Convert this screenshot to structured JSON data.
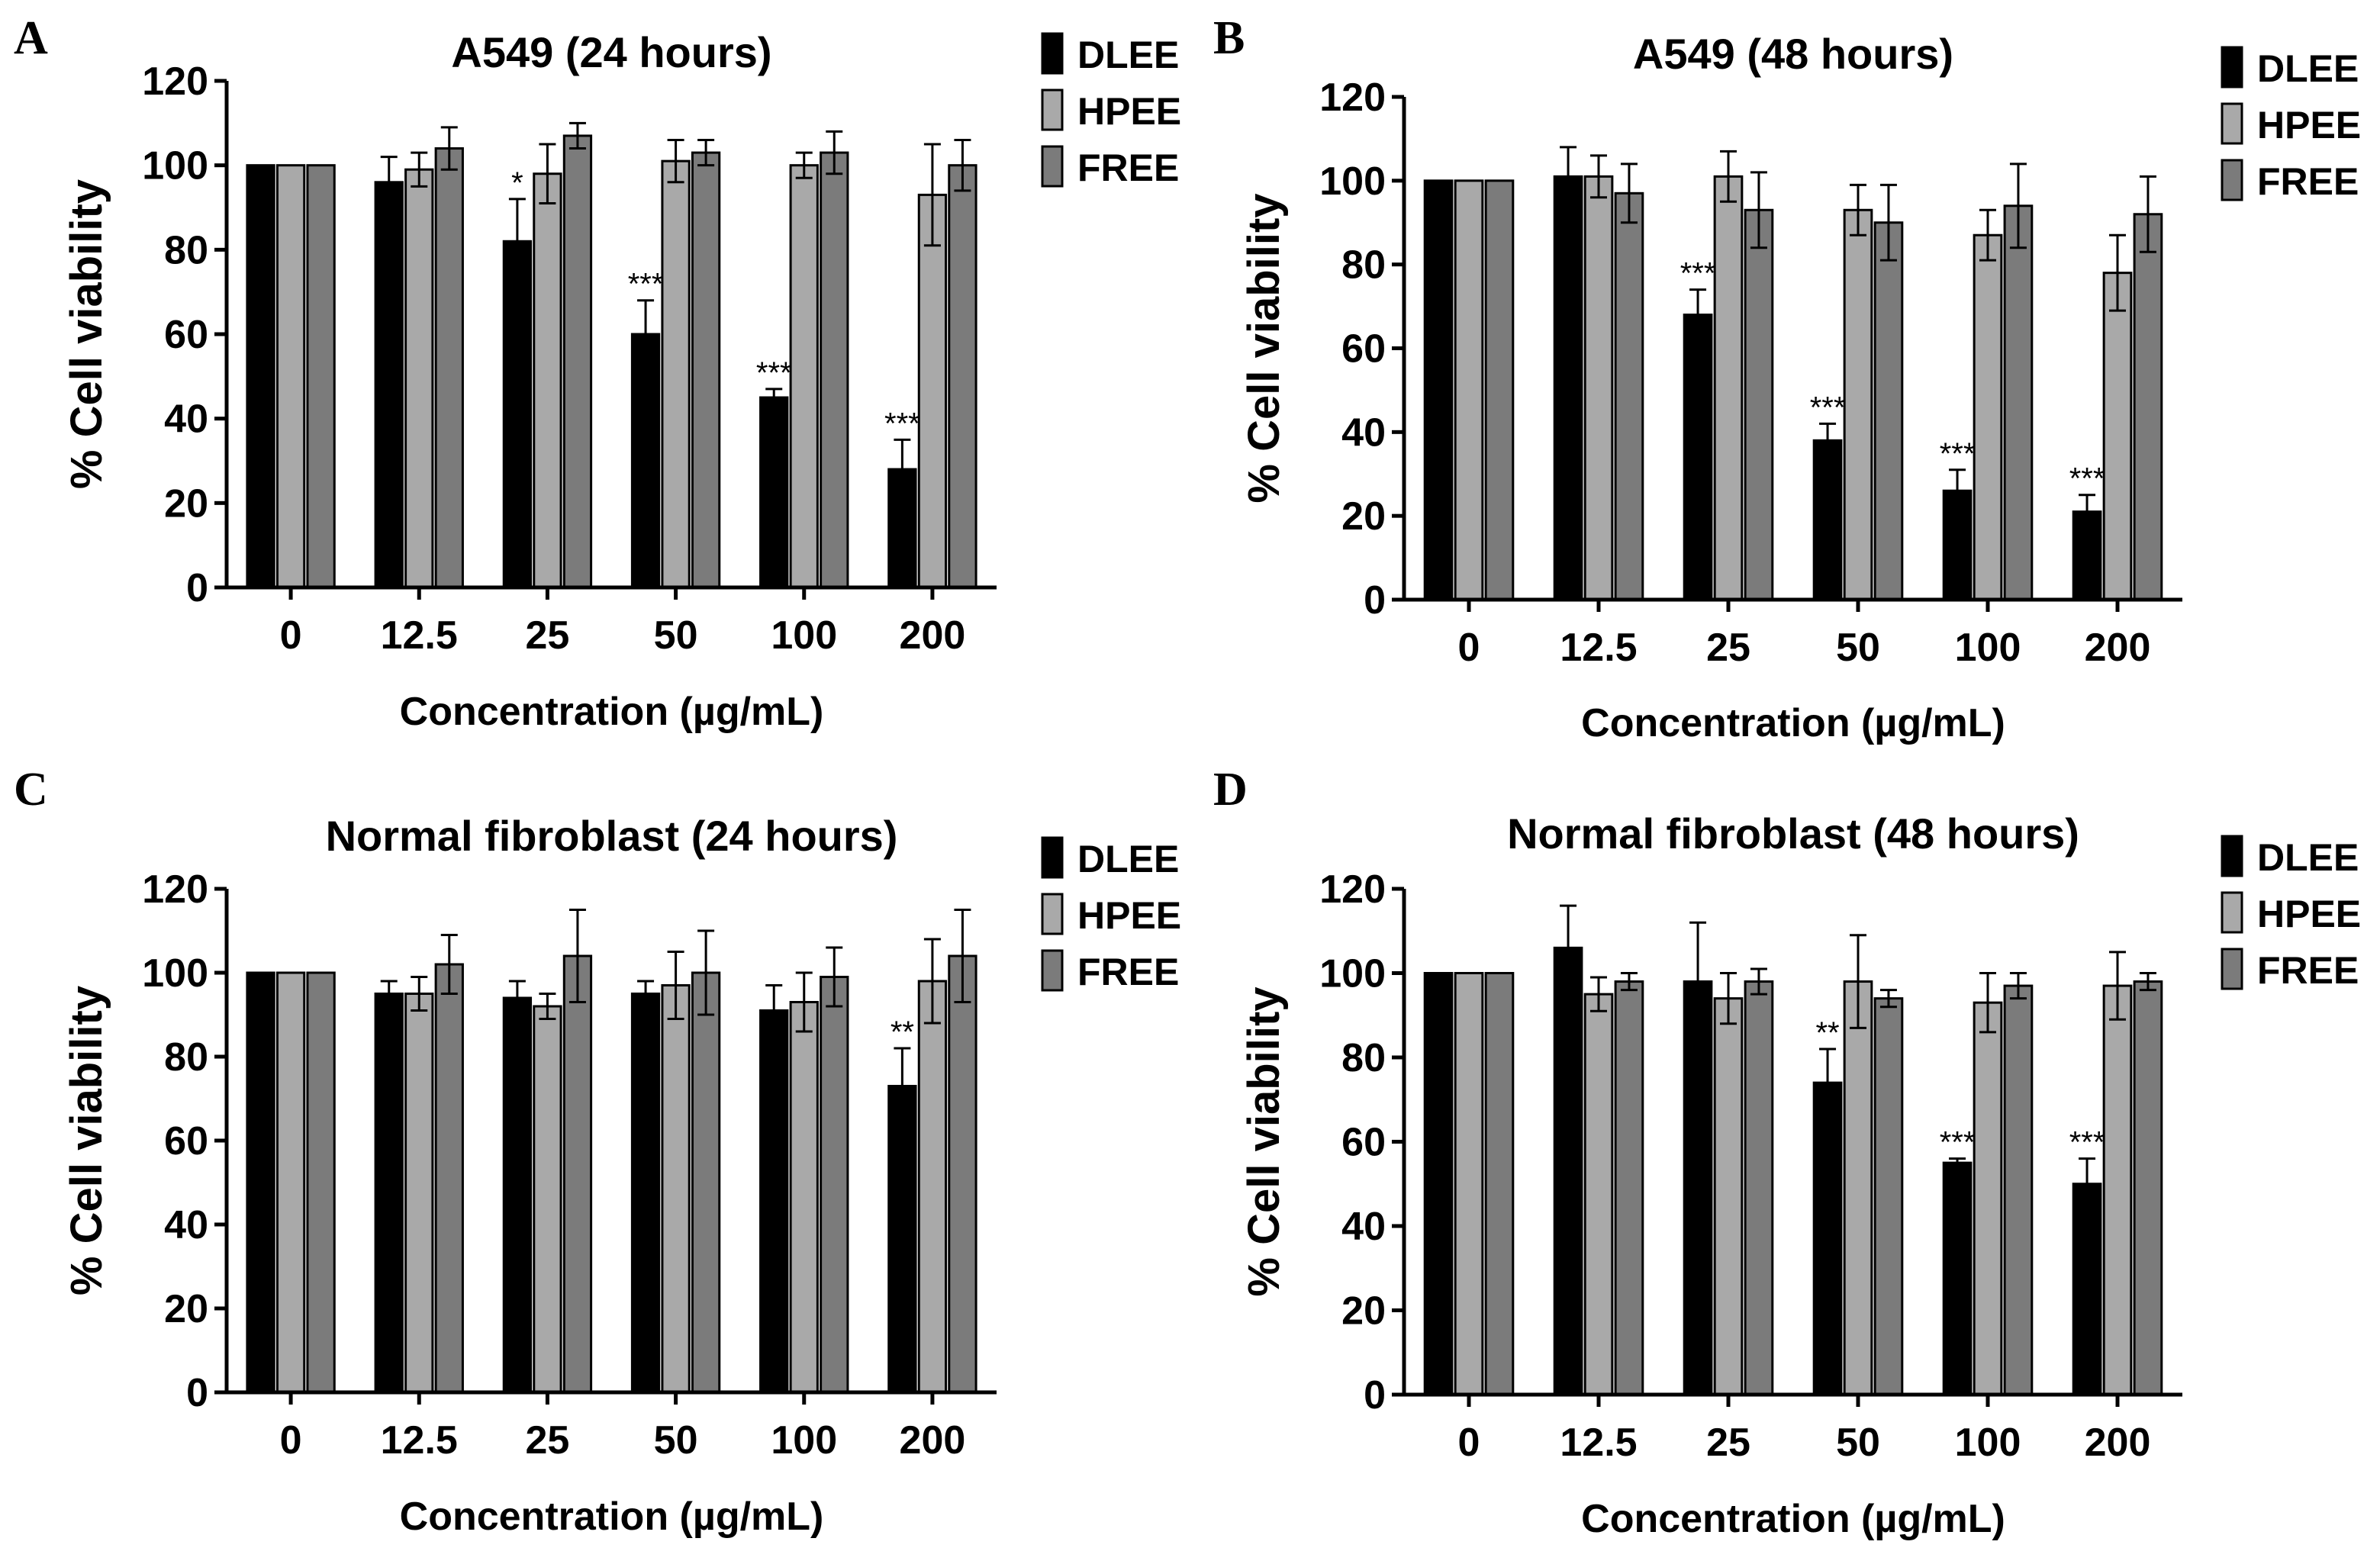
{
  "figure": {
    "panels": [
      "A",
      "B",
      "C",
      "D"
    ]
  },
  "colors": {
    "DLEE": "#000000",
    "HPEE": "#a9a9a9",
    "FREE": "#7b7b7b",
    "outline": "#000000"
  },
  "chart_data": [
    {
      "panel": "A",
      "type": "bar",
      "title": "A549 (24 hours)",
      "xlabel": "Concentration (µg/mL)",
      "ylabel": "% Cell viability",
      "ylim": [
        0,
        120
      ],
      "yticks": [
        "0",
        "20",
        "40",
        "60",
        "80",
        "100",
        "120"
      ],
      "categories": [
        "0",
        "12.5",
        "25",
        "50",
        "100",
        "200"
      ],
      "legend": [
        "DLEE",
        "HPEE",
        "FREE"
      ],
      "legend_position": "top-right",
      "series": [
        {
          "name": "DLEE",
          "values": [
            100,
            96,
            82,
            60,
            45,
            28
          ],
          "errors": [
            0,
            6,
            10,
            8,
            2,
            7
          ]
        },
        {
          "name": "HPEE",
          "values": [
            100,
            99,
            98,
            101,
            100,
            93
          ],
          "errors": [
            0,
            4,
            7,
            5,
            3,
            12
          ]
        },
        {
          "name": "FREE",
          "values": [
            100,
            104,
            107,
            103,
            103,
            100
          ],
          "errors": [
            0,
            5,
            3,
            3,
            5,
            6
          ]
        }
      ],
      "significance": [
        "",
        "",
        "*",
        "***",
        "***",
        "***"
      ]
    },
    {
      "panel": "B",
      "type": "bar",
      "title": "A549 (48 hours)",
      "xlabel": "Concentration (µg/mL)",
      "ylabel": "% Cell viability",
      "ylim": [
        0,
        120
      ],
      "yticks": [
        "0",
        "20",
        "40",
        "60",
        "80",
        "100",
        "120"
      ],
      "categories": [
        "0",
        "12.5",
        "25",
        "50",
        "100",
        "200"
      ],
      "legend": [
        "DLEE",
        "HPEE",
        "FREE"
      ],
      "legend_position": "top-right",
      "series": [
        {
          "name": "DLEE",
          "values": [
            100,
            101,
            68,
            38,
            26,
            21
          ],
          "errors": [
            0,
            7,
            6,
            4,
            5,
            4
          ]
        },
        {
          "name": "HPEE",
          "values": [
            100,
            101,
            101,
            93,
            87,
            78
          ],
          "errors": [
            0,
            5,
            6,
            6,
            6,
            9
          ]
        },
        {
          "name": "FREE",
          "values": [
            100,
            97,
            93,
            90,
            94,
            92
          ],
          "errors": [
            0,
            7,
            9,
            9,
            10,
            9
          ]
        }
      ],
      "significance": [
        "",
        "",
        "***",
        "***",
        "***",
        "***"
      ]
    },
    {
      "panel": "C",
      "type": "bar",
      "title": "Normal fibroblast (24 hours)",
      "xlabel": "Concentration (µg/mL)",
      "ylabel": "% Cell viability",
      "ylim": [
        0,
        120
      ],
      "yticks": [
        "0",
        "20",
        "40",
        "60",
        "80",
        "100",
        "120"
      ],
      "categories": [
        "0",
        "12.5",
        "25",
        "50",
        "100",
        "200"
      ],
      "legend": [
        "DLEE",
        "HPEE",
        "FREE"
      ],
      "legend_position": "top-right",
      "series": [
        {
          "name": "DLEE",
          "values": [
            100,
            95,
            94,
            95,
            91,
            73
          ],
          "errors": [
            0,
            3,
            4,
            3,
            6,
            9
          ]
        },
        {
          "name": "HPEE",
          "values": [
            100,
            95,
            92,
            97,
            93,
            98
          ],
          "errors": [
            0,
            4,
            3,
            8,
            7,
            10
          ]
        },
        {
          "name": "FREE",
          "values": [
            100,
            102,
            104,
            100,
            99,
            104
          ],
          "errors": [
            0,
            7,
            11,
            10,
            7,
            11
          ]
        }
      ],
      "significance": [
        "",
        "",
        "",
        "",
        "",
        "**"
      ]
    },
    {
      "panel": "D",
      "type": "bar",
      "title": "Normal fibroblast (48 hours)",
      "xlabel": "Concentration (µg/mL)",
      "ylabel": "% Cell viability",
      "ylim": [
        0,
        120
      ],
      "yticks": [
        "0",
        "20",
        "40",
        "60",
        "80",
        "100",
        "120"
      ],
      "categories": [
        "0",
        "12.5",
        "25",
        "50",
        "100",
        "200"
      ],
      "legend": [
        "DLEE",
        "HPEE",
        "FREE"
      ],
      "legend_position": "top-right",
      "series": [
        {
          "name": "DLEE",
          "values": [
            100,
            106,
            98,
            74,
            55,
            50
          ],
          "errors": [
            0,
            10,
            14,
            8,
            1,
            6
          ]
        },
        {
          "name": "HPEE",
          "values": [
            100,
            95,
            94,
            98,
            93,
            97
          ],
          "errors": [
            0,
            4,
            6,
            11,
            7,
            8
          ]
        },
        {
          "name": "FREE",
          "values": [
            100,
            98,
            98,
            94,
            97,
            98
          ],
          "errors": [
            0,
            2,
            3,
            2,
            3,
            2
          ]
        }
      ],
      "significance": [
        "",
        "",
        "",
        "**",
        "***",
        "***"
      ]
    }
  ]
}
